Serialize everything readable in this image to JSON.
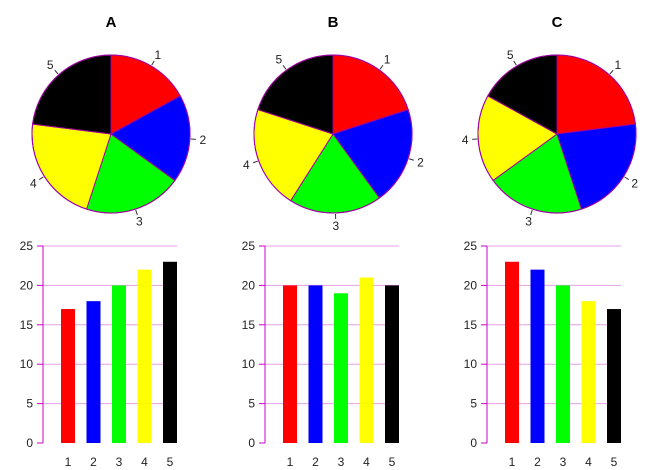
{
  "chart_data": [
    {
      "panel": "A",
      "type": "pie+bar",
      "title": "A",
      "categories": [
        "1",
        "2",
        "3",
        "4",
        "5"
      ],
      "values": [
        17,
        18,
        20,
        22,
        23
      ],
      "colors": [
        "#ff0000",
        "#0000ff",
        "#00ff00",
        "#ffff00",
        "#000000"
      ],
      "ylim": [
        0,
        25
      ],
      "yticks": [
        0,
        5,
        10,
        15,
        20,
        25
      ],
      "grid": "horizontal lines at y ticks",
      "legend": "none"
    },
    {
      "panel": "B",
      "type": "pie+bar",
      "title": "B",
      "categories": [
        "1",
        "2",
        "3",
        "4",
        "5"
      ],
      "values": [
        20,
        20,
        19,
        21,
        20
      ],
      "colors": [
        "#ff0000",
        "#0000ff",
        "#00ff00",
        "#ffff00",
        "#000000"
      ],
      "ylim": [
        0,
        25
      ],
      "yticks": [
        0,
        5,
        10,
        15,
        20,
        25
      ],
      "grid": "horizontal lines at y ticks",
      "legend": "none"
    },
    {
      "panel": "C",
      "type": "pie+bar",
      "title": "C",
      "categories": [
        "1",
        "2",
        "3",
        "4",
        "5"
      ],
      "values": [
        23,
        22,
        20,
        18,
        17
      ],
      "colors": [
        "#ff0000",
        "#0000ff",
        "#00ff00",
        "#ffff00",
        "#000000"
      ],
      "ylim": [
        0,
        25
      ],
      "yticks": [
        0,
        5,
        10,
        15,
        20,
        25
      ],
      "grid": "horizontal lines at y ticks",
      "legend": "none"
    }
  ],
  "style": {
    "axis_color": "#cc00cc",
    "pie_outline": "#a000a0",
    "gridline_color": "#e6a0e6"
  }
}
